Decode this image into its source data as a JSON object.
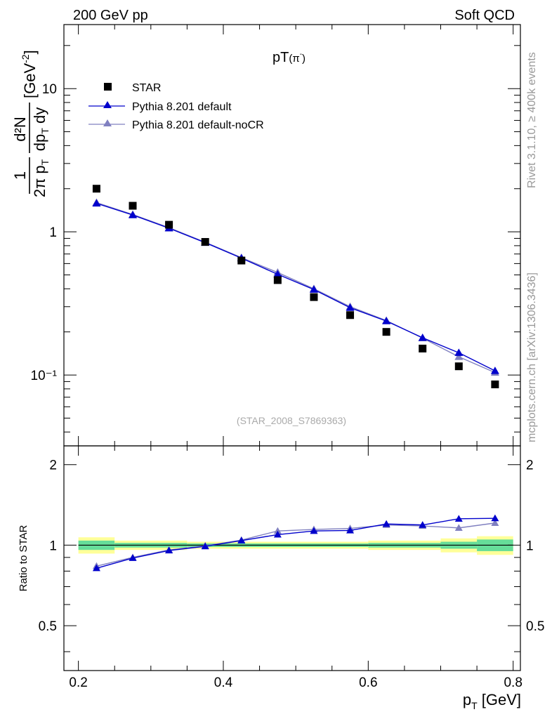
{
  "header": {
    "left": "200 GeV pp",
    "right": "Soft QCD"
  },
  "side_text": {
    "rivet": "Rivet 3.1.10, ≥ 400k events",
    "mcplots": "mcplots.cern.ch [arXiv:1306.3436]"
  },
  "plot_title": {
    "main": "pT",
    "sub": "(π",
    "sup": "-",
    "close": ")"
  },
  "watermark": "(STAR_2008_S7869363)",
  "ylabel_top": {
    "frac1_num": "1",
    "frac1_den": "2π p",
    "frac1_den_sub": "T",
    "frac2_num": "d²N",
    "frac2_den": "dp",
    "frac2_den_sub": "T",
    "frac2_den_tail": " dy",
    "unit": "[GeV",
    "unit_sup": "-2",
    "unit_close": "]"
  },
  "ylabel_bottom": "Ratio to STAR",
  "xlabel": {
    "main": "p",
    "sub": "T",
    "unit": " [GeV]"
  },
  "colors": {
    "data": "#000000",
    "default": "#0000cc",
    "nocr": "#8080c0",
    "band_outer": "#ffff99",
    "band_inner": "#66dd99"
  },
  "chart_data": [
    {
      "type": "scatter",
      "panel": "main",
      "yscale": "log",
      "xlim": [
        0.18,
        0.81
      ],
      "ylim": [
        0.032,
        28
      ],
      "x_ticks": [
        "0.2",
        "0.4",
        "0.6",
        "0.8"
      ],
      "y_ticks": [
        "10⁻¹",
        "1",
        "10"
      ],
      "legend_position": "top-left",
      "series": [
        {
          "name": "STAR",
          "marker": "square",
          "x": [
            0.225,
            0.275,
            0.325,
            0.375,
            0.425,
            0.475,
            0.525,
            0.575,
            0.625,
            0.675,
            0.725,
            0.775
          ],
          "y": [
            2.0,
            1.52,
            1.12,
            0.85,
            0.63,
            0.46,
            0.35,
            0.262,
            0.2,
            0.153,
            0.115,
            0.086
          ]
        },
        {
          "name": "Pythia 8.201 default",
          "marker": "triangle",
          "x": [
            0.225,
            0.275,
            0.325,
            0.375,
            0.425,
            0.475,
            0.525,
            0.575,
            0.625,
            0.675,
            0.725,
            0.775
          ],
          "y": [
            1.58,
            1.31,
            1.06,
            0.84,
            0.655,
            0.505,
            0.395,
            0.295,
            0.238,
            0.182,
            0.143,
            0.107
          ]
        },
        {
          "name": "Pythia 8.201 default-noCR",
          "marker": "triangle",
          "x": [
            0.225,
            0.275,
            0.325,
            0.375,
            0.425,
            0.475,
            0.525,
            0.575,
            0.625,
            0.675,
            0.725,
            0.775
          ],
          "y": [
            1.6,
            1.32,
            1.07,
            0.845,
            0.66,
            0.52,
            0.4,
            0.3,
            0.24,
            0.181,
            0.134,
            0.104
          ]
        }
      ]
    },
    {
      "type": "line",
      "panel": "ratio",
      "xlim": [
        0.18,
        0.81
      ],
      "ylim": [
        0.34,
        2.35
      ],
      "yscale": "log",
      "y_ticks": [
        "0.5",
        "1",
        "2"
      ],
      "reference": 1,
      "band_edges": [
        0.2,
        0.25,
        0.35,
        0.6,
        0.7,
        0.75,
        0.8
      ],
      "band_outer_half": [
        0.07,
        0.04,
        0.03,
        0.04,
        0.06,
        0.08
      ],
      "band_inner_half": [
        0.04,
        0.02,
        0.015,
        0.02,
        0.03,
        0.05
      ],
      "series": [
        {
          "name": "Pythia 8.201 default",
          "x": [
            0.225,
            0.275,
            0.325,
            0.375,
            0.425,
            0.475,
            0.525,
            0.575,
            0.625,
            0.675,
            0.725,
            0.775
          ],
          "y": [
            0.82,
            0.895,
            0.955,
            0.99,
            1.04,
            1.095,
            1.13,
            1.135,
            1.2,
            1.19,
            1.255,
            1.26
          ]
        },
        {
          "name": "Pythia 8.201 default-noCR",
          "x": [
            0.225,
            0.275,
            0.325,
            0.375,
            0.425,
            0.475,
            0.525,
            0.575,
            0.625,
            0.675,
            0.725,
            0.775
          ],
          "y": [
            0.835,
            0.9,
            0.96,
            0.995,
            1.045,
            1.13,
            1.145,
            1.155,
            1.19,
            1.18,
            1.16,
            1.21
          ]
        }
      ]
    }
  ]
}
